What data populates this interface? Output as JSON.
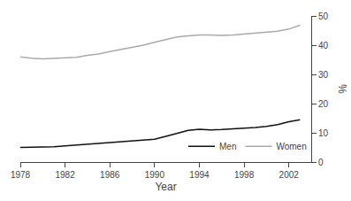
{
  "chart_data": {
    "type": "line",
    "xlabel": "Year",
    "ylabel": "%",
    "x": [
      1978,
      1979,
      1980,
      1981,
      1982,
      1983,
      1984,
      1985,
      1986,
      1987,
      1988,
      1989,
      1990,
      1991,
      1992,
      1993,
      1994,
      1995,
      1996,
      1997,
      1998,
      1999,
      2000,
      2001,
      2002,
      2003
    ],
    "series": [
      {
        "name": "Men",
        "color": "#111111",
        "values": [
          5.0,
          5.0,
          5.1,
          5.2,
          5.5,
          5.8,
          6.0,
          6.3,
          6.6,
          6.9,
          7.2,
          7.5,
          7.8,
          8.8,
          9.8,
          10.8,
          11.2,
          11.0,
          11.1,
          11.3,
          11.5,
          11.8,
          12.2,
          12.8,
          13.8,
          14.5
        ]
      },
      {
        "name": "Women",
        "color": "#aaaaaa",
        "values": [
          36.0,
          35.5,
          35.3,
          35.5,
          35.6,
          35.8,
          36.5,
          37.0,
          37.8,
          38.5,
          39.2,
          40.0,
          41.0,
          42.0,
          42.8,
          43.2,
          43.5,
          43.5,
          43.3,
          43.5,
          43.8,
          44.0,
          44.3,
          44.8,
          45.5,
          46.8
        ]
      }
    ],
    "xlim": [
      1978,
      2004
    ],
    "ylim": [
      0,
      50
    ],
    "xticks": [
      1978,
      1982,
      1986,
      1990,
      1994,
      1998,
      2002
    ],
    "yticks": [
      0,
      10,
      20,
      30,
      40,
      50
    ],
    "grid": false,
    "legend": "lower right"
  }
}
